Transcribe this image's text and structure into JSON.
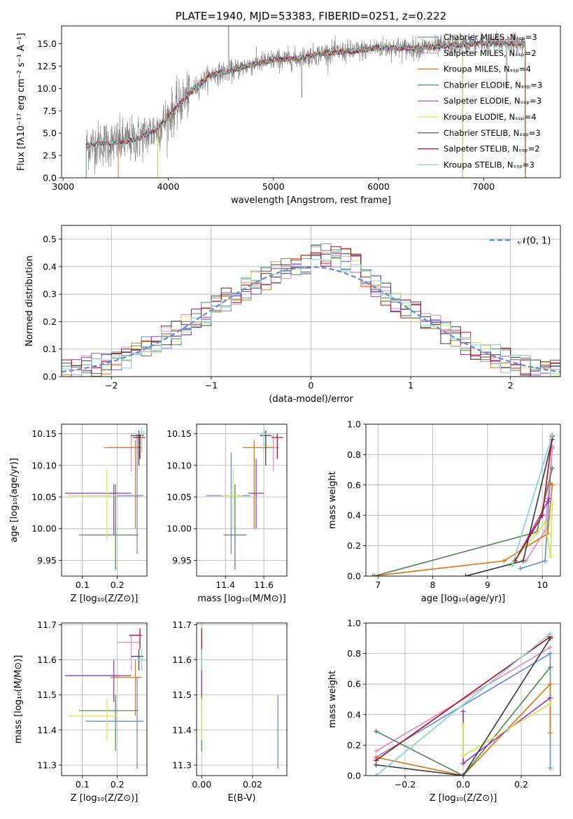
{
  "colors": {
    "chabrier_miles": "#6a8fdc",
    "salpeter_miles": "#e88bc5",
    "kroupa_miles": "#e07b1a",
    "chabrier_elodie": "#5a8a5e",
    "salpeter_elodie": "#9a3dbf",
    "kroupa_elodie": "#d6e85a",
    "chabrier_stelib": "#404040",
    "salpeter_stelib": "#b01020",
    "kroupa_stelib": "#7fd6de",
    "spectrum": "#7f7f7f",
    "normal": "#6a8fdc"
  },
  "chart_data": [
    {
      "id": "spectrum",
      "type": "line",
      "title": "PLATE=1940, MJD=53383, FIBERID=0251, z=0.222",
      "xlabel": "wavelength [Angstrom, rest frame]",
      "ylabel": "Flux [fλ10⁻¹⁷ erg cm⁻² s⁻¹ A⁻¹]",
      "xlim": [
        2985,
        7730
      ],
      "ylim": [
        0,
        17
      ],
      "xticks": [
        3000,
        4000,
        5000,
        6000,
        7000
      ],
      "yticks": [
        0.0,
        2.5,
        5.0,
        7.5,
        10.0,
        12.5,
        15.0
      ],
      "legend": "right",
      "legend_entries": [
        "Chabrier MILES, Nₛₛₚ=3",
        "Salpeter MILES, Nₛₛₚ=2",
        "Kroupa MILES, Nₛₛₚ=4",
        "Chabrier ELODIE, Nₛₛₚ=3",
        "Salpeter ELODIE, Nₛₛₚ=3",
        "Kroupa ELODIE, Nₛₛₚ=4",
        "Chabrier STELIB, Nₛₛₚ=3",
        "Salpeter STELIB, Nₛₛₚ=2",
        "Kroupa STELIB, Nₛₛₚ=3"
      ],
      "model_ranges": [
        {
          "name": "MILES",
          "xmin": 3525,
          "xmax": 7400
        },
        {
          "name": "ELODIE",
          "xmin": 3900,
          "xmax": 6800
        },
        {
          "name": "STELIB",
          "xmin": 3220,
          "xmax": 7390
        }
      ],
      "continuum": {
        "x": [
          3220,
          3300,
          3500,
          3700,
          3900,
          4000,
          4200,
          4400,
          4600,
          4800,
          5000,
          5200,
          5500,
          5800,
          6000,
          6300,
          6600,
          6900,
          7200,
          7400
        ],
        "y": [
          3.5,
          3.8,
          3.9,
          4.3,
          5.5,
          6.8,
          9.5,
          11.5,
          12.0,
          12.7,
          13.2,
          13.3,
          14.0,
          14.2,
          14.6,
          14.5,
          14.7,
          15.0,
          15.1,
          15.0
        ]
      }
    },
    {
      "id": "residuals",
      "type": "histogram",
      "xlabel": "(data-model)/error",
      "ylabel": "Normed distribution",
      "xlim": [
        -2.5,
        2.5
      ],
      "ylim": [
        0,
        0.55
      ],
      "xticks": [
        -2,
        -1,
        0,
        1,
        2
      ],
      "yticks": [
        0.0,
        0.1,
        0.2,
        0.3,
        0.4,
        0.5
      ],
      "legend": "top-right",
      "legend_entries": [
        "𝒩(0, 1)"
      ],
      "bin_width": 0.1
    },
    {
      "id": "z-age",
      "type": "scatter-errorbar",
      "xlabel": "Z [log₁₀(Z/Z⊙)]",
      "ylabel": "age  [log₁₀(age/yr)]",
      "xlim": [
        0.04,
        0.285
      ],
      "ylim": [
        9.925,
        10.165
      ],
      "xticks": [
        0.1,
        0.2
      ],
      "yticks": [
        9.95,
        10.0,
        10.05,
        10.1,
        10.15
      ],
      "points": [
        {
          "s": "chabrier_miles",
          "x": 0.257,
          "y": 10.052,
          "xerr": [
            0.11,
            0.275
          ],
          "yerr": [
            9.96,
            10.15
          ]
        },
        {
          "s": "salpeter_miles",
          "x": 0.24,
          "y": 10.128,
          "xerr": [
            0.16,
            0.27
          ],
          "yerr": [
            10.09,
            10.15
          ]
        },
        {
          "s": "kroupa_miles",
          "x": 0.252,
          "y": 10.128,
          "xerr": [
            0.17,
            0.27
          ],
          "yerr": [
            10.0,
            10.14
          ]
        },
        {
          "s": "chabrier_elodie",
          "x": 0.195,
          "y": 9.99,
          "xerr": [
            0.09,
            0.26
          ],
          "yerr": [
            9.935,
            10.07
          ]
        },
        {
          "s": "salpeter_elodie",
          "x": 0.19,
          "y": 10.056,
          "xerr": [
            0.05,
            0.24
          ],
          "yerr": [
            9.99,
            10.07
          ]
        },
        {
          "s": "kroupa_elodie",
          "x": 0.17,
          "y": 10.052,
          "xerr": [
            0.06,
            0.2
          ],
          "yerr": [
            9.98,
            10.095
          ]
        },
        {
          "s": "chabrier_stelib",
          "x": 0.262,
          "y": 10.147,
          "xerr": [
            0.24,
            0.275
          ],
          "yerr": [
            10.1,
            10.155
          ]
        },
        {
          "s": "salpeter_stelib",
          "x": 0.265,
          "y": 10.144,
          "xerr": [
            0.245,
            0.28
          ],
          "yerr": [
            10.11,
            10.15
          ]
        },
        {
          "s": "kroupa_stelib",
          "x": 0.27,
          "y": 10.15,
          "xerr": [
            0.255,
            0.28
          ],
          "yerr": [
            10.12,
            10.16
          ]
        }
      ]
    },
    {
      "id": "mass-age",
      "type": "scatter-errorbar",
      "xlabel": "mass [log₁₀(M/M⊙)]",
      "ylabel": "",
      "xlim": [
        11.25,
        11.72
      ],
      "ylim": [
        9.925,
        10.165
      ],
      "xticks": [
        11.4,
        11.6
      ],
      "yticks": [
        9.95,
        10.0,
        10.05,
        10.1,
        10.15
      ],
      "points": [
        {
          "s": "chabrier_miles",
          "x": 11.43,
          "y": 10.052,
          "xerr": [
            11.3,
            11.53
          ],
          "yerr": [
            9.96,
            10.12
          ]
        },
        {
          "s": "salpeter_miles",
          "x": 11.65,
          "y": 10.128,
          "xerr": [
            11.6,
            11.68
          ],
          "yerr": [
            10.09,
            10.15
          ]
        },
        {
          "s": "kroupa_miles",
          "x": 11.55,
          "y": 10.128,
          "xerr": [
            11.49,
            11.65
          ],
          "yerr": [
            10.0,
            10.14
          ]
        },
        {
          "s": "chabrier_elodie",
          "x": 11.45,
          "y": 9.99,
          "xerr": [
            11.39,
            11.51
          ],
          "yerr": [
            9.935,
            10.07
          ]
        },
        {
          "s": "salpeter_elodie",
          "x": 11.56,
          "y": 10.056,
          "xerr": [
            11.52,
            11.6
          ],
          "yerr": [
            10.0,
            10.11
          ]
        },
        {
          "s": "kroupa_elodie",
          "x": 11.44,
          "y": 10.052,
          "xerr": [
            11.38,
            11.49
          ],
          "yerr": [
            10.0,
            10.095
          ]
        },
        {
          "s": "chabrier_stelib",
          "x": 11.61,
          "y": 10.147,
          "xerr": [
            11.58,
            11.64
          ],
          "yerr": [
            10.1,
            10.155
          ]
        },
        {
          "s": "salpeter_stelib",
          "x": 11.67,
          "y": 10.144,
          "xerr": [
            11.64,
            11.7
          ],
          "yerr": [
            10.11,
            10.15
          ]
        },
        {
          "s": "kroupa_stelib",
          "x": 11.6,
          "y": 10.15,
          "xerr": [
            11.56,
            11.63
          ],
          "yerr": [
            10.12,
            10.16
          ]
        }
      ]
    },
    {
      "id": "age-weight",
      "type": "line",
      "xlabel": "age  [log₁₀(age/yr)]",
      "ylabel": "mass weight",
      "xlim": [
        6.78,
        10.33
      ],
      "ylim": [
        0,
        1.0
      ],
      "xticks": [
        7,
        8,
        9,
        10
      ],
      "yticks": [
        0.0,
        0.2,
        0.4,
        0.6,
        0.8,
        1.0
      ],
      "series": [
        {
          "s": "chabrier_miles",
          "x": [
            9.6,
            10.05,
            10.18
          ],
          "y": [
            0.05,
            0.1,
            0.85
          ]
        },
        {
          "s": "salpeter_miles",
          "x": [
            9.7,
            10.05,
            10.18
          ],
          "y": [
            0.1,
            0.3,
            0.84
          ]
        },
        {
          "s": "kroupa_miles",
          "x": [
            6.9,
            9.3,
            10.1,
            10.18,
            10.15
          ],
          "y": [
            0.0,
            0.1,
            0.28,
            0.6,
            0.61
          ]
        },
        {
          "s": "chabrier_elodie",
          "x": [
            6.93,
            9.9,
            10.18
          ],
          "y": [
            0.0,
            0.29,
            0.71
          ]
        },
        {
          "s": "salpeter_elodie",
          "x": [
            9.5,
            10.1,
            10.12
          ],
          "y": [
            0.1,
            0.49,
            0.51
          ]
        },
        {
          "s": "kroupa_elodie",
          "x": [
            9.4,
            10.05,
            10.15,
            10.18
          ],
          "y": [
            0.07,
            0.35,
            0.13,
            0.47
          ]
        },
        {
          "s": "chabrier_stelib",
          "x": [
            8.6,
            9.65,
            10.18
          ],
          "y": [
            0.0,
            0.1,
            0.9
          ]
        },
        {
          "s": "salpeter_stelib",
          "x": [
            9.5,
            10.0,
            10.18
          ],
          "y": [
            0.1,
            0.4,
            0.92
          ]
        },
        {
          "s": "kroupa_stelib",
          "x": [
            9.45,
            10.18
          ],
          "y": [
            0.07,
            0.93
          ]
        }
      ]
    },
    {
      "id": "z-mass",
      "type": "scatter-errorbar",
      "xlabel": "Z [log₁₀(Z/Z⊙)]",
      "ylabel": "mass [log₁₀(M/M⊙)]",
      "xlim": [
        0.04,
        0.285
      ],
      "ylim": [
        11.27,
        11.705
      ],
      "xticks": [
        0.1,
        0.2
      ],
      "yticks": [
        11.3,
        11.4,
        11.5,
        11.6,
        11.7
      ],
      "points": [
        {
          "s": "chabrier_miles",
          "x": 0.257,
          "y": 11.425,
          "xerr": [
            0.11,
            0.275
          ],
          "yerr": [
            11.29,
            11.55
          ]
        },
        {
          "s": "salpeter_miles",
          "x": 0.24,
          "y": 11.65,
          "xerr": [
            0.2,
            0.265
          ],
          "yerr": [
            11.57,
            11.67
          ]
        },
        {
          "s": "kroupa_miles",
          "x": 0.252,
          "y": 11.55,
          "xerr": [
            0.18,
            0.27
          ],
          "yerr": [
            11.44,
            11.6
          ]
        },
        {
          "s": "chabrier_elodie",
          "x": 0.195,
          "y": 11.455,
          "xerr": [
            0.09,
            0.26
          ],
          "yerr": [
            11.34,
            11.5
          ]
        },
        {
          "s": "salpeter_elodie",
          "x": 0.19,
          "y": 11.555,
          "xerr": [
            0.05,
            0.24
          ],
          "yerr": [
            11.48,
            11.6
          ]
        },
        {
          "s": "kroupa_elodie",
          "x": 0.17,
          "y": 11.44,
          "xerr": [
            0.06,
            0.2
          ],
          "yerr": [
            11.37,
            11.49
          ]
        },
        {
          "s": "chabrier_stelib",
          "x": 0.262,
          "y": 11.61,
          "xerr": [
            0.24,
            0.275
          ],
          "yerr": [
            11.57,
            11.63
          ]
        },
        {
          "s": "salpeter_stelib",
          "x": 0.265,
          "y": 11.67,
          "xerr": [
            0.235,
            0.27
          ],
          "yerr": [
            11.63,
            11.69
          ]
        },
        {
          "s": "kroupa_stelib",
          "x": 0.27,
          "y": 11.6,
          "xerr": [
            0.245,
            0.28
          ],
          "yerr": [
            11.57,
            11.63
          ]
        }
      ]
    },
    {
      "id": "ebv-mass",
      "type": "scatter-errorbar",
      "xlabel": "E(B-V)",
      "ylabel": "",
      "xlim": [
        -0.002,
        0.0335
      ],
      "ylim": [
        11.27,
        11.705
      ],
      "xticks": [
        0.0,
        0.02
      ],
      "yticks": [
        11.3,
        11.4,
        11.5,
        11.6,
        11.7
      ],
      "points": [
        {
          "s": "chabrier_miles",
          "x": 0.03,
          "y": 11.4,
          "xerr": [
            0.03,
            0.03
          ],
          "yerr": [
            11.29,
            11.5
          ]
        },
        {
          "s": "salpeter_miles",
          "x": 0.0,
          "y": 11.55,
          "xerr": [
            0.0,
            0.0
          ],
          "yerr": [
            11.5,
            11.62
          ]
        },
        {
          "s": "kroupa_miles",
          "x": 0.0,
          "y": 11.55,
          "xerr": [
            0.0,
            0.0
          ],
          "yerr": [
            11.44,
            11.6
          ]
        },
        {
          "s": "chabrier_elodie",
          "x": 0.0,
          "y": 11.45,
          "xerr": [
            0.0,
            0.0
          ],
          "yerr": [
            11.34,
            11.5
          ]
        },
        {
          "s": "salpeter_elodie",
          "x": 0.0,
          "y": 11.55,
          "xerr": [
            0.0,
            0.0
          ],
          "yerr": [
            11.5,
            11.6
          ]
        },
        {
          "s": "kroupa_elodie",
          "x": 0.0,
          "y": 11.44,
          "xerr": [
            0.0,
            0.0
          ],
          "yerr": [
            11.37,
            11.49
          ]
        },
        {
          "s": "chabrier_stelib",
          "x": 0.0,
          "y": 11.6,
          "xerr": [
            0.0,
            0.0
          ],
          "yerr": [
            11.57,
            11.63
          ]
        },
        {
          "s": "salpeter_stelib",
          "x": 0.0,
          "y": 11.65,
          "xerr": [
            0.0,
            0.0
          ],
          "yerr": [
            11.6,
            11.69
          ]
        },
        {
          "s": "kroupa_stelib",
          "x": 0.0,
          "y": 11.6,
          "xerr": [
            0.0,
            0.0
          ],
          "yerr": [
            11.57,
            11.63
          ]
        }
      ]
    },
    {
      "id": "z-weight",
      "type": "line",
      "xlabel": "Z [log₁₀(Z/Z⊙)]",
      "ylabel": "mass weight",
      "xlim": [
        -0.335,
        0.335
      ],
      "ylim": [
        0,
        1.0
      ],
      "xticks": [
        -0.2,
        0.0,
        0.2
      ],
      "yticks": [
        0.0,
        0.2,
        0.4,
        0.6,
        0.8,
        1.0
      ],
      "series": [
        {
          "s": "chabrier_miles",
          "x": [
            -0.3,
            0.3,
            0.3
          ],
          "y": [
            0.12,
            0.8,
            0.05
          ]
        },
        {
          "s": "salpeter_miles",
          "x": [
            -0.3,
            0.3
          ],
          "y": [
            0.16,
            0.84
          ]
        },
        {
          "s": "kroupa_miles",
          "x": [
            -0.3,
            0.0,
            0.3,
            0.3
          ],
          "y": [
            0.12,
            0.0,
            0.6,
            0.28
          ]
        },
        {
          "s": "chabrier_elodie",
          "x": [
            -0.3,
            0.0,
            0.3
          ],
          "y": [
            0.29,
            0.0,
            0.71
          ]
        },
        {
          "s": "salpeter_elodie",
          "x": [
            0.0,
            0.0,
            0.3
          ],
          "y": [
            0.42,
            0.08,
            0.51
          ]
        },
        {
          "s": "kroupa_elodie",
          "x": [
            0.0,
            0.0,
            0.3
          ],
          "y": [
            0.33,
            0.13,
            0.47
          ]
        },
        {
          "s": "chabrier_stelib",
          "x": [
            -0.3,
            0.0,
            0.3
          ],
          "y": [
            0.07,
            0.0,
            0.9
          ]
        },
        {
          "s": "salpeter_stelib",
          "x": [
            -0.3,
            0.3
          ],
          "y": [
            0.1,
            0.91
          ]
        },
        {
          "s": "kroupa_stelib",
          "x": [
            -0.3,
            0.3
          ],
          "y": [
            0.0,
            0.93
          ]
        }
      ]
    }
  ]
}
